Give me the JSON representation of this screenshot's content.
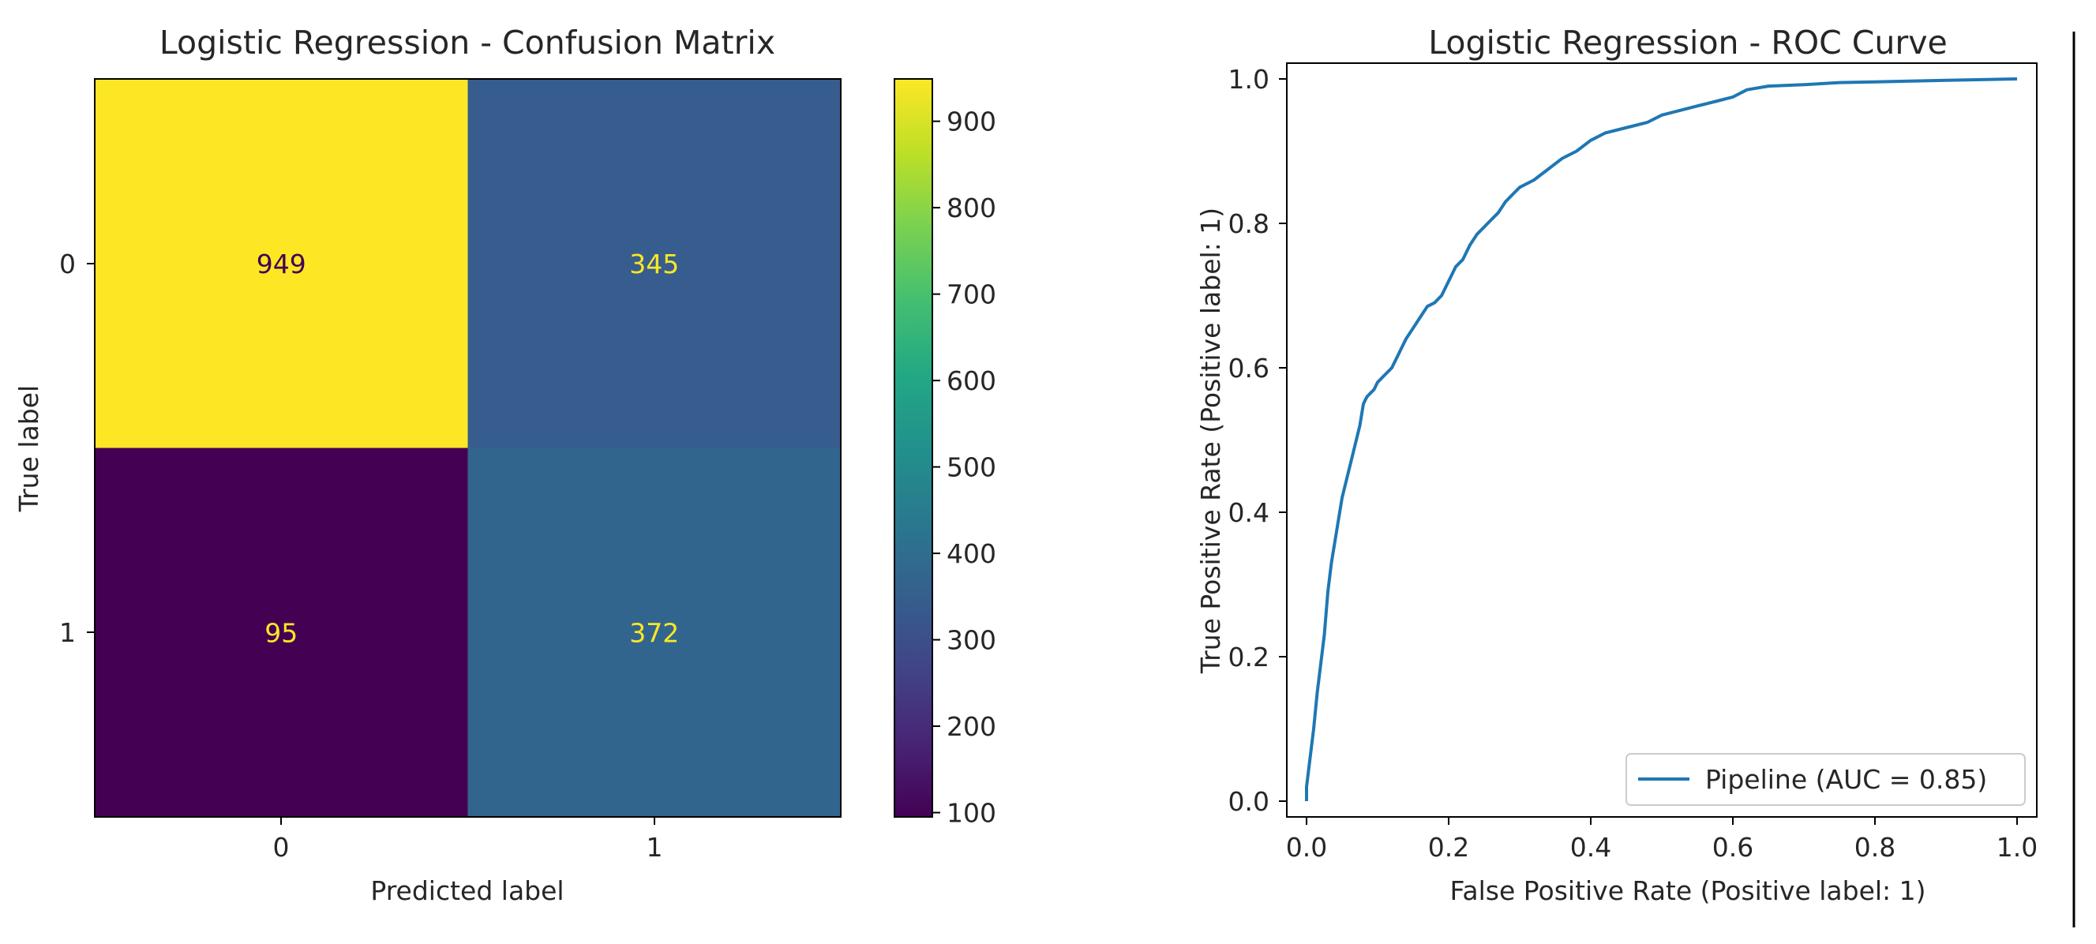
{
  "chart_data": [
    {
      "type": "heatmap",
      "title": "Logistic Regression - Confusion Matrix",
      "xlabel": "Predicted label",
      "ylabel": "True label",
      "x_categories": [
        "0",
        "1"
      ],
      "y_categories": [
        "0",
        "1"
      ],
      "values": [
        [
          949,
          345
        ],
        [
          95,
          372
        ]
      ],
      "value_labels": [
        [
          "949",
          "345"
        ],
        [
          "95",
          "372"
        ]
      ],
      "colormap": "viridis",
      "colorbar": {
        "range": [
          95,
          949
        ],
        "ticks": [
          100,
          200,
          300,
          400,
          500,
          600,
          700,
          800,
          900
        ],
        "tick_labels": [
          "100",
          "200",
          "300",
          "400",
          "500",
          "600",
          "700",
          "800",
          "900"
        ]
      },
      "grid": false
    },
    {
      "type": "line",
      "title": "Logistic Regression - ROC Curve",
      "xlabel": "False Positive Rate (Positive label: 1)",
      "ylabel": "True Positive Rate (Positive label: 1)",
      "xlim": [
        0.0,
        1.0
      ],
      "ylim": [
        0.0,
        1.0
      ],
      "xticks": [
        "0.0",
        "0.2",
        "0.4",
        "0.6",
        "0.8",
        "1.0"
      ],
      "yticks": [
        "0.0",
        "0.2",
        "0.4",
        "0.6",
        "0.8",
        "1.0"
      ],
      "legend": {
        "placement": "lower-right"
      },
      "grid": false,
      "series": [
        {
          "name": "Pipeline (AUC = 0.85)",
          "color": "#1f77b4",
          "x": [
            0,
            0,
            0.005,
            0.01,
            0.015,
            0.02,
            0.025,
            0.03,
            0.035,
            0.04,
            0.045,
            0.05,
            0.055,
            0.06,
            0.065,
            0.07,
            0.075,
            0.08,
            0.085,
            0.09,
            0.095,
            0.1,
            0.11,
            0.12,
            0.13,
            0.14,
            0.15,
            0.16,
            0.17,
            0.18,
            0.19,
            0.2,
            0.21,
            0.22,
            0.23,
            0.24,
            0.25,
            0.26,
            0.27,
            0.28,
            0.29,
            0.3,
            0.32,
            0.34,
            0.36,
            0.38,
            0.4,
            0.42,
            0.44,
            0.46,
            0.48,
            0.5,
            0.52,
            0.54,
            0.56,
            0.58,
            0.6,
            0.62,
            0.65,
            0.7,
            0.75,
            0.8,
            0.85,
            0.9,
            0.95,
            1.0
          ],
          "y": [
            0,
            0.02,
            0.06,
            0.1,
            0.15,
            0.19,
            0.23,
            0.29,
            0.33,
            0.36,
            0.39,
            0.42,
            0.44,
            0.46,
            0.48,
            0.5,
            0.52,
            0.55,
            0.56,
            0.565,
            0.57,
            0.58,
            0.59,
            0.6,
            0.62,
            0.64,
            0.655,
            0.67,
            0.685,
            0.69,
            0.7,
            0.72,
            0.74,
            0.75,
            0.77,
            0.785,
            0.795,
            0.805,
            0.815,
            0.83,
            0.84,
            0.85,
            0.86,
            0.875,
            0.89,
            0.9,
            0.915,
            0.925,
            0.93,
            0.935,
            0.94,
            0.95,
            0.955,
            0.96,
            0.965,
            0.97,
            0.975,
            0.985,
            0.99,
            0.992,
            0.995,
            0.996,
            0.997,
            0.998,
            0.999,
            1.0
          ]
        }
      ]
    }
  ]
}
